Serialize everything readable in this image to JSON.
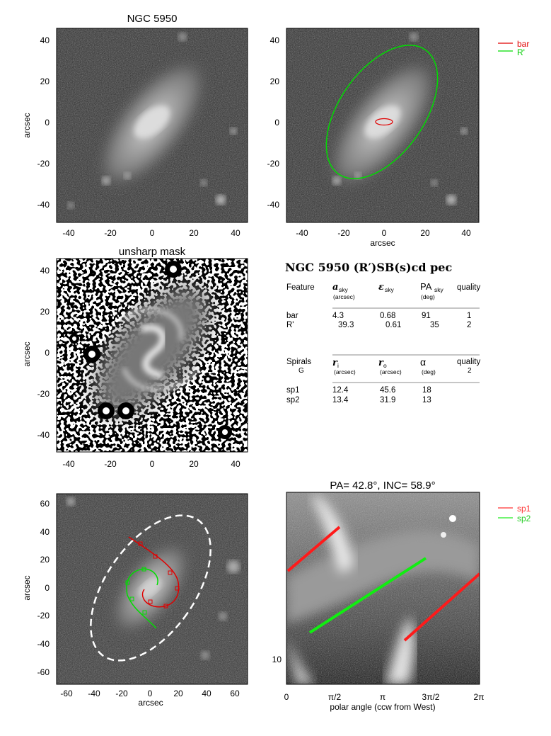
{
  "panels": {
    "p1": {
      "title": "NGC 5950",
      "ylabel": "arcsec",
      "xticks": [
        "-40",
        "-20",
        "0",
        "20",
        "40"
      ],
      "yticks": [
        "40",
        "20",
        "0",
        "-20",
        "-40"
      ]
    },
    "p2": {
      "xlabel": "arcsec",
      "xticks": [
        "-40",
        "-20",
        "0",
        "20",
        "40"
      ],
      "yticks": [
        "40",
        "20",
        "0",
        "-20",
        "-40"
      ],
      "legend": [
        {
          "label": "bar",
          "color": "#e00000"
        },
        {
          "label": "R'",
          "color": "#00dd00"
        }
      ]
    },
    "p3": {
      "title": "unsharp mask",
      "ylabel": "arcsec",
      "xticks": [
        "-40",
        "-20",
        "0",
        "20",
        "40"
      ],
      "yticks": [
        "40",
        "20",
        "0",
        "-20",
        "-40"
      ]
    },
    "p5": {
      "xlabel": "arcsec",
      "ylabel": "arcsec",
      "xticks": [
        "-60",
        "-40",
        "-20",
        "0",
        "20",
        "40",
        "60"
      ],
      "yticks": [
        "60",
        "40",
        "20",
        "0",
        "-20",
        "-40",
        "-60"
      ]
    },
    "p6": {
      "title": "PA=  42.8°, INC=  58.9°",
      "xlabel": "polar angle (ccw from West)",
      "xticks": [
        "0",
        "π/2",
        "π",
        "3π/2",
        "2π"
      ],
      "ytick": "10",
      "legend": [
        {
          "label": "sp1",
          "color": "#ff3333"
        },
        {
          "label": "sp2",
          "color": "#22ee22"
        }
      ]
    }
  },
  "table": {
    "heading": "NGC 5950  (R′)SB(s)cd pec",
    "features": {
      "headers": [
        "Feature",
        "a",
        "ε",
        "PA",
        "quality"
      ],
      "subscripts": [
        "sky",
        "sky",
        "sky"
      ],
      "units": [
        "(arcsec)",
        "",
        "(deg)"
      ],
      "rows": [
        [
          "bar",
          "4.3",
          "0.68",
          "91",
          "1"
        ],
        [
          "R'",
          "39.3",
          "0.61",
          "35",
          "2"
        ]
      ]
    },
    "spirals": {
      "headers": [
        "Spirals",
        "r",
        "r",
        "α",
        "quality"
      ],
      "subscripts": [
        "i",
        "o"
      ],
      "class": "G",
      "class_quality": "2",
      "units": [
        "(arcsec)",
        "(arcsec)",
        "(deg)"
      ],
      "rows": [
        [
          "sp1",
          "12.4",
          "45.6",
          "18"
        ],
        [
          "sp2",
          "13.4",
          "31.9",
          "13"
        ]
      ]
    }
  }
}
